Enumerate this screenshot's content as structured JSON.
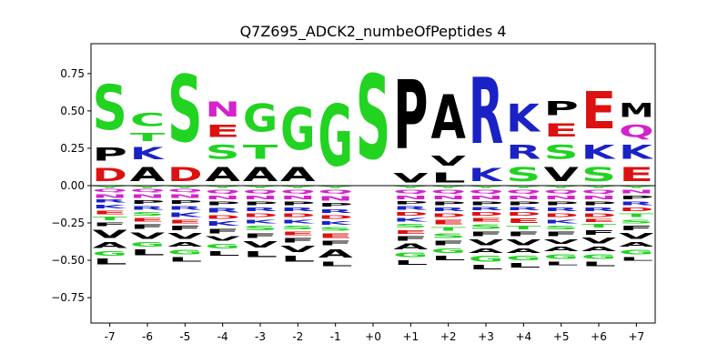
{
  "chart_data": {
    "type": "sequence-logo",
    "title": "Q7Z695_ADCK2_numbeOfPeptides 4",
    "x": {
      "categories": [
        "-7",
        "-6",
        "-5",
        "-4",
        "-3",
        "-2",
        "-1",
        "+0",
        "+1",
        "+2",
        "+3",
        "+4",
        "+5",
        "+6",
        "+7"
      ]
    },
    "y": {
      "ticks": [
        0.75,
        0.5,
        0.25,
        0.0,
        -0.25,
        -0.5,
        -0.75
      ],
      "tick_labels": [
        "0.75",
        "0.50",
        "0.25",
        "0.00",
        "−0.25",
        "−0.50",
        "−0.75"
      ],
      "ylim": [
        -0.92,
        0.95
      ]
    },
    "colors": {
      "S": "#22d322",
      "T": "#22d322",
      "G": "#22d322",
      "C": "#22d322",
      "Y": "#22d322",
      "N": "#d422cc",
      "Q": "#d422cc",
      "K": "#1a22c6",
      "R": "#1a22c6",
      "H": "#1a22c6",
      "D": "#dd1111",
      "E": "#dd1111",
      "P": "#000000",
      "A": "#000000",
      "V": "#000000",
      "L": "#000000",
      "I": "#000000",
      "M": "#000000",
      "F": "#000000",
      "W": "#000000"
    },
    "positions": [
      {
        "label": "-7",
        "positive": [
          {
            "l": "D",
            "h": 0.14
          },
          {
            "l": "P",
            "h": 0.14
          },
          {
            "l": "S",
            "h": 0.48
          }
        ],
        "negative": [
          {
            "l": "Y",
            "h": 0.02
          },
          {
            "l": "Q",
            "h": 0.03
          },
          {
            "l": "N",
            "h": 0.04
          },
          {
            "l": "R",
            "h": 0.03
          },
          {
            "l": "K",
            "h": 0.04
          },
          {
            "l": "E",
            "h": 0.04
          },
          {
            "l": "T",
            "h": 0.04
          },
          {
            "l": "F",
            "h": 0.04
          },
          {
            "l": "V",
            "h": 0.09
          },
          {
            "l": "A",
            "h": 0.06
          },
          {
            "l": "G",
            "h": 0.05
          },
          {
            "l": "L",
            "h": 0.06
          }
        ]
      },
      {
        "label": "-6",
        "positive": [
          {
            "l": "A",
            "h": 0.15
          },
          {
            "l": "K",
            "h": 0.13
          },
          {
            "l": "T",
            "h": 0.09
          },
          {
            "l": "C",
            "h": 0.14
          }
        ],
        "negative": [
          {
            "l": "Y",
            "h": 0.02
          },
          {
            "l": "Q",
            "h": 0.03
          },
          {
            "l": "N",
            "h": 0.04
          },
          {
            "l": "P",
            "h": 0.04
          },
          {
            "l": "R",
            "h": 0.04
          },
          {
            "l": "S",
            "h": 0.04
          },
          {
            "l": "E",
            "h": 0.04
          },
          {
            "l": "F",
            "h": 0.05
          },
          {
            "l": "V",
            "h": 0.07
          },
          {
            "l": "G",
            "h": 0.05
          },
          {
            "l": "L",
            "h": 0.06
          }
        ]
      },
      {
        "label": "-5",
        "positive": [
          {
            "l": "D",
            "h": 0.15
          },
          {
            "l": "S",
            "h": 0.72
          }
        ],
        "negative": [
          {
            "l": "Y",
            "h": 0.02
          },
          {
            "l": "Q",
            "h": 0.03
          },
          {
            "l": "N",
            "h": 0.04
          },
          {
            "l": "P",
            "h": 0.04
          },
          {
            "l": "R",
            "h": 0.04
          },
          {
            "l": "K",
            "h": 0.05
          },
          {
            "l": "E",
            "h": 0.04
          },
          {
            "l": "F",
            "h": 0.05
          },
          {
            "l": "V",
            "h": 0.06
          },
          {
            "l": "A",
            "h": 0.05
          },
          {
            "l": "G",
            "h": 0.05
          },
          {
            "l": "L",
            "h": 0.05
          }
        ]
      },
      {
        "label": "-4",
        "positive": [
          {
            "l": "A",
            "h": 0.15
          },
          {
            "l": "S",
            "h": 0.15
          },
          {
            "l": "E",
            "h": 0.13
          },
          {
            "l": "N",
            "h": 0.16
          }
        ],
        "negative": [
          {
            "l": "Y",
            "h": 0.02
          },
          {
            "l": "Q",
            "h": 0.04
          },
          {
            "l": "N",
            "h": 0.04
          },
          {
            "l": "P",
            "h": 0.04
          },
          {
            "l": "R",
            "h": 0.05
          },
          {
            "l": "D",
            "h": 0.04
          },
          {
            "l": "K",
            "h": 0.05
          },
          {
            "l": "F",
            "h": 0.05
          },
          {
            "l": "V",
            "h": 0.05
          },
          {
            "l": "G",
            "h": 0.05
          },
          {
            "l": "L",
            "h": 0.05
          }
        ]
      },
      {
        "label": "-3",
        "positive": [
          {
            "l": "A",
            "h": 0.15
          },
          {
            "l": "T",
            "h": 0.15
          },
          {
            "l": "G",
            "h": 0.3
          }
        ],
        "negative": [
          {
            "l": "Y",
            "h": 0.02
          },
          {
            "l": "Q",
            "h": 0.04
          },
          {
            "l": "N",
            "h": 0.04
          },
          {
            "l": "P",
            "h": 0.04
          },
          {
            "l": "R",
            "h": 0.04
          },
          {
            "l": "D",
            "h": 0.04
          },
          {
            "l": "K",
            "h": 0.04
          },
          {
            "l": "S",
            "h": 0.05
          },
          {
            "l": "F",
            "h": 0.05
          },
          {
            "l": "V",
            "h": 0.07
          },
          {
            "l": "L",
            "h": 0.06
          }
        ]
      },
      {
        "label": "-2",
        "positive": [
          {
            "l": "A",
            "h": 0.15
          },
          {
            "l": "G",
            "h": 0.45
          }
        ],
        "negative": [
          {
            "l": "Y",
            "h": 0.02
          },
          {
            "l": "Q",
            "h": 0.04
          },
          {
            "l": "N",
            "h": 0.04
          },
          {
            "l": "P",
            "h": 0.04
          },
          {
            "l": "R",
            "h": 0.04
          },
          {
            "l": "D",
            "h": 0.04
          },
          {
            "l": "K",
            "h": 0.04
          },
          {
            "l": "S",
            "h": 0.04
          },
          {
            "l": "E",
            "h": 0.04
          },
          {
            "l": "F",
            "h": 0.05
          },
          {
            "l": "V",
            "h": 0.07
          },
          {
            "l": "L",
            "h": 0.06
          }
        ]
      },
      {
        "label": "-1",
        "positive": [
          {
            "l": "G",
            "h": 0.66
          }
        ],
        "negative": [
          {
            "l": "Y",
            "h": 0.02
          },
          {
            "l": "Q",
            "h": 0.04
          },
          {
            "l": "N",
            "h": 0.05
          },
          {
            "l": "P",
            "h": 0.04
          },
          {
            "l": "R",
            "h": 0.04
          },
          {
            "l": "D",
            "h": 0.04
          },
          {
            "l": "K",
            "h": 0.04
          },
          {
            "l": "S",
            "h": 0.04
          },
          {
            "l": "E",
            "h": 0.05
          },
          {
            "l": "F",
            "h": 0.05
          },
          {
            "l": "A",
            "h": 0.09
          },
          {
            "l": "L",
            "h": 0.05
          }
        ]
      },
      {
        "label": "+0",
        "positive": [
          {
            "l": "S",
            "h": 0.9
          }
        ],
        "negative": []
      },
      {
        "label": "+1",
        "positive": [
          {
            "l": "V",
            "h": 0.1
          },
          {
            "l": "P",
            "h": 0.74
          }
        ],
        "negative": [
          {
            "l": "Y",
            "h": 0.02
          },
          {
            "l": "Q",
            "h": 0.04
          },
          {
            "l": "N",
            "h": 0.04
          },
          {
            "l": "P",
            "h": 0.03
          },
          {
            "l": "R",
            "h": 0.04
          },
          {
            "l": "D",
            "h": 0.04
          },
          {
            "l": "K",
            "h": 0.04
          },
          {
            "l": "S",
            "h": 0.04
          },
          {
            "l": "E",
            "h": 0.04
          },
          {
            "l": "F",
            "h": 0.05
          },
          {
            "l": "A",
            "h": 0.06
          },
          {
            "l": "G",
            "h": 0.05
          },
          {
            "l": "L",
            "h": 0.05
          }
        ]
      },
      {
        "label": "+2",
        "positive": [
          {
            "l": "L",
            "h": 0.11
          },
          {
            "l": "V",
            "h": 0.11
          },
          {
            "l": "A",
            "h": 0.47
          }
        ],
        "negative": [
          {
            "l": "Y",
            "h": 0.02
          },
          {
            "l": "Q",
            "h": 0.04
          },
          {
            "l": "N",
            "h": 0.04
          },
          {
            "l": "P",
            "h": 0.04
          },
          {
            "l": "R",
            "h": 0.04
          },
          {
            "l": "D",
            "h": 0.04
          },
          {
            "l": "E",
            "h": 0.05
          },
          {
            "l": "T",
            "h": 0.04
          },
          {
            "l": "S",
            "h": 0.05
          },
          {
            "l": "F",
            "h": 0.05
          },
          {
            "l": "G",
            "h": 0.05
          },
          {
            "l": "L",
            "h": 0.05
          }
        ]
      },
      {
        "label": "+3",
        "positive": [
          {
            "l": "K",
            "h": 0.14
          },
          {
            "l": "R",
            "h": 0.71
          }
        ],
        "negative": [
          {
            "l": "Y",
            "h": 0.02
          },
          {
            "l": "Q",
            "h": 0.04
          },
          {
            "l": "N",
            "h": 0.04
          },
          {
            "l": "P",
            "h": 0.04
          },
          {
            "l": "R",
            "h": 0.03
          },
          {
            "l": "D",
            "h": 0.04
          },
          {
            "l": "E",
            "h": 0.04
          },
          {
            "l": "S",
            "h": 0.05
          },
          {
            "l": "F",
            "h": 0.05
          },
          {
            "l": "V",
            "h": 0.06
          },
          {
            "l": "A",
            "h": 0.05
          },
          {
            "l": "G",
            "h": 0.06
          },
          {
            "l": "L",
            "h": 0.05
          }
        ]
      },
      {
        "label": "+4",
        "positive": [
          {
            "l": "S",
            "h": 0.15
          },
          {
            "l": "R",
            "h": 0.15
          },
          {
            "l": "K",
            "h": 0.3
          }
        ],
        "negative": [
          {
            "l": "Y",
            "h": 0.02
          },
          {
            "l": "Q",
            "h": 0.04
          },
          {
            "l": "N",
            "h": 0.04
          },
          {
            "l": "P",
            "h": 0.04
          },
          {
            "l": "R",
            "h": 0.03
          },
          {
            "l": "D",
            "h": 0.04
          },
          {
            "l": "E",
            "h": 0.05
          },
          {
            "l": "T",
            "h": 0.04
          },
          {
            "l": "F",
            "h": 0.05
          },
          {
            "l": "V",
            "h": 0.06
          },
          {
            "l": "A",
            "h": 0.05
          },
          {
            "l": "G",
            "h": 0.05
          },
          {
            "l": "L",
            "h": 0.05
          }
        ]
      },
      {
        "label": "+5",
        "positive": [
          {
            "l": "V",
            "h": 0.15
          },
          {
            "l": "S",
            "h": 0.15
          },
          {
            "l": "E",
            "h": 0.14
          },
          {
            "l": "P",
            "h": 0.15
          }
        ],
        "negative": [
          {
            "l": "Y",
            "h": 0.02
          },
          {
            "l": "Q",
            "h": 0.04
          },
          {
            "l": "N",
            "h": 0.04
          },
          {
            "l": "P",
            "h": 0.04
          },
          {
            "l": "R",
            "h": 0.04
          },
          {
            "l": "D",
            "h": 0.04
          },
          {
            "l": "K",
            "h": 0.04
          },
          {
            "l": "S",
            "h": 0.04
          },
          {
            "l": "F",
            "h": 0.05
          },
          {
            "l": "V",
            "h": 0.05
          },
          {
            "l": "A",
            "h": 0.05
          },
          {
            "l": "G",
            "h": 0.05
          },
          {
            "l": "L",
            "h": 0.04
          }
        ]
      },
      {
        "label": "+6",
        "positive": [
          {
            "l": "S",
            "h": 0.15
          },
          {
            "l": "K",
            "h": 0.15
          },
          {
            "l": "E",
            "h": 0.4
          }
        ],
        "negative": [
          {
            "l": "Y",
            "h": 0.02
          },
          {
            "l": "Q",
            "h": 0.04
          },
          {
            "l": "N",
            "h": 0.04
          },
          {
            "l": "P",
            "h": 0.04
          },
          {
            "l": "R",
            "h": 0.04
          },
          {
            "l": "D",
            "h": 0.04
          },
          {
            "l": "E",
            "h": 0.03
          },
          {
            "l": "T",
            "h": 0.04
          },
          {
            "l": "F",
            "h": 0.05
          },
          {
            "l": "V",
            "h": 0.06
          },
          {
            "l": "A",
            "h": 0.05
          },
          {
            "l": "G",
            "h": 0.05
          },
          {
            "l": "L",
            "h": 0.05
          }
        ]
      },
      {
        "label": "+7",
        "positive": [
          {
            "l": "E",
            "h": 0.15
          },
          {
            "l": "K",
            "h": 0.15
          },
          {
            "l": "Q",
            "h": 0.13
          },
          {
            "l": "M",
            "h": 0.15
          }
        ],
        "negative": [
          {
            "l": "Y",
            "h": 0.02
          },
          {
            "l": "N",
            "h": 0.04
          },
          {
            "l": "P",
            "h": 0.04
          },
          {
            "l": "R",
            "h": 0.04
          },
          {
            "l": "D",
            "h": 0.04
          },
          {
            "l": "T",
            "h": 0.04
          },
          {
            "l": "S",
            "h": 0.04
          },
          {
            "l": "F",
            "h": 0.05
          },
          {
            "l": "V",
            "h": 0.06
          },
          {
            "l": "A",
            "h": 0.05
          },
          {
            "l": "G",
            "h": 0.05
          },
          {
            "l": "L",
            "h": 0.04
          }
        ]
      }
    ]
  }
}
